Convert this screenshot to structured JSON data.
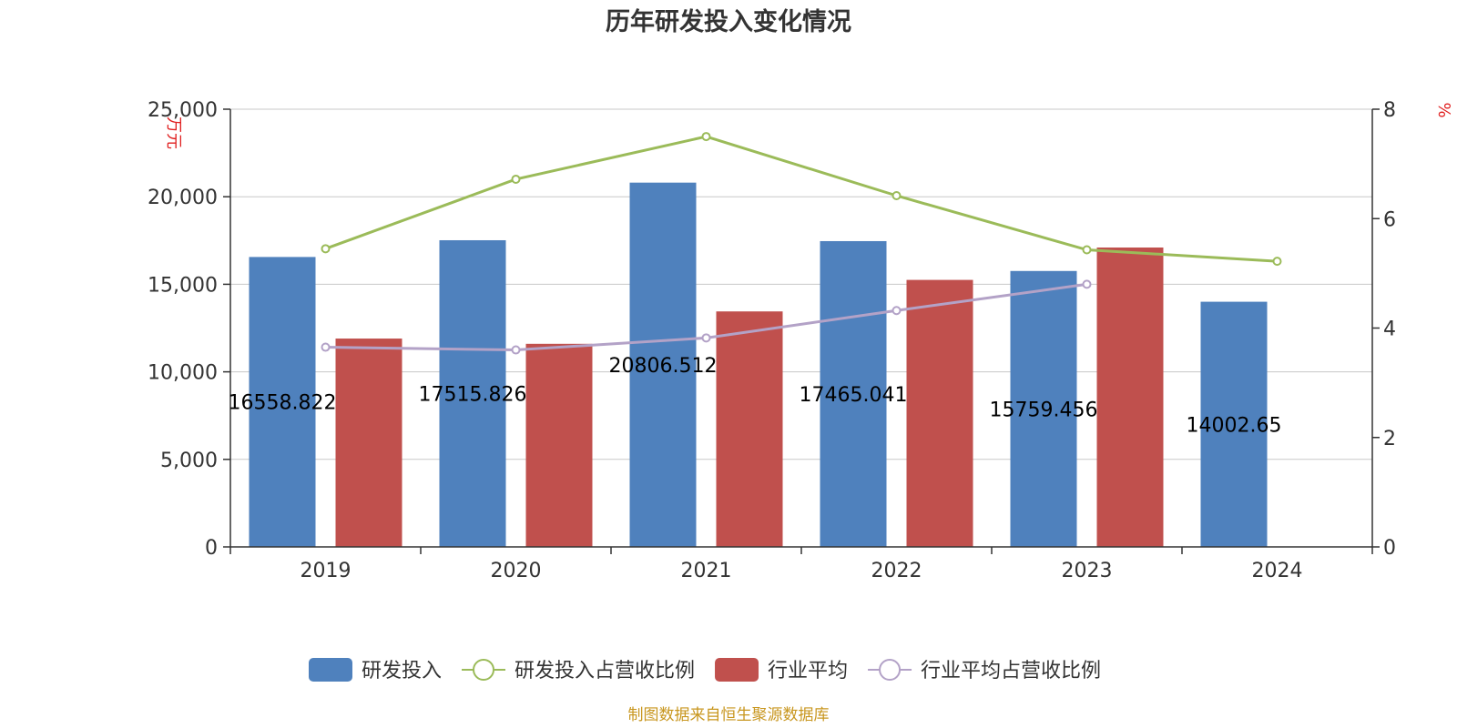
{
  "chart_data": {
    "type": "bar",
    "title": "历年研发投入变化情况",
    "categories": [
      "2019",
      "2020",
      "2021",
      "2022",
      "2023",
      "2024"
    ],
    "y_left": {
      "unit": "万元",
      "range": [
        0,
        25000
      ],
      "ticks": [
        "0",
        "5,000",
        "10,000",
        "15,000",
        "20,000",
        "25,000"
      ]
    },
    "y_right": {
      "unit": "%",
      "range": [
        0,
        8
      ],
      "ticks": [
        "0",
        "2",
        "4",
        "6",
        "8"
      ]
    },
    "series": [
      {
        "name": "研发投入",
        "type": "bar",
        "axis": "left",
        "color": "#4f81bd",
        "values": [
          16558.822,
          17515.826,
          20806.512,
          17465.041,
          15759.456,
          14002.65
        ],
        "labels": [
          "16558.822",
          "17515.826",
          "20806.512",
          "17465.041",
          "15759.456",
          "14002.65"
        ]
      },
      {
        "name": "研发投入占营收比例",
        "type": "line",
        "axis": "right",
        "color": "#9bbb59",
        "values": [
          5.45,
          6.72,
          7.5,
          6.42,
          5.43,
          5.22
        ]
      },
      {
        "name": "行业平均",
        "type": "bar",
        "axis": "left",
        "color": "#c0504d",
        "values": [
          11900,
          11600,
          13450,
          15250,
          17100,
          null
        ]
      },
      {
        "name": "行业平均占营收比例",
        "type": "line",
        "axis": "right",
        "color": "#b3a2c7",
        "values": [
          3.65,
          3.6,
          3.82,
          4.32,
          4.8,
          null
        ]
      }
    ],
    "grid": true,
    "legend": "bottom-center"
  },
  "source": "制图数据来自恒生聚源数据库"
}
